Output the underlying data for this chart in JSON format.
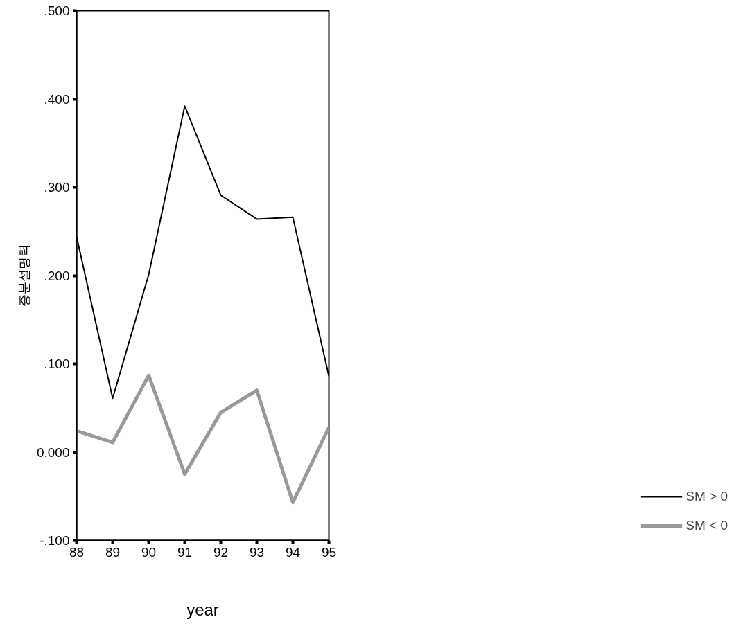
{
  "chart_data": {
    "type": "line",
    "xlabel": "year",
    "ylabel": "증분설명력",
    "x": [
      88,
      89,
      90,
      91,
      92,
      93,
      94,
      95
    ],
    "series": [
      {
        "name": "SM > 0",
        "color": "#000000",
        "values": [
          0.244,
          0.061,
          0.201,
          0.392,
          0.291,
          0.264,
          0.266,
          0.086
        ]
      },
      {
        "name": "SM < 0",
        "color": "#999999",
        "values": [
          0.024,
          0.011,
          0.087,
          -0.025,
          0.045,
          0.07,
          -0.057,
          0.028
        ]
      }
    ],
    "xlim": [
      88,
      95
    ],
    "ylim": [
      -0.1,
      0.5
    ],
    "xticks": [
      88,
      89,
      90,
      91,
      92,
      93,
      94,
      95
    ],
    "yticks": [
      {
        "value": -0.1,
        "label": "-.100"
      },
      {
        "value": 0,
        "label": "0.000"
      },
      {
        "value": 0.1,
        "label": ".100"
      },
      {
        "value": 0.2,
        "label": ".200"
      },
      {
        "value": 0.3,
        "label": ".300"
      },
      {
        "value": 0.4,
        "label": ".400"
      },
      {
        "value": 0.5,
        "label": ".500"
      }
    ],
    "grid": false,
    "legend": "bottom right",
    "line_style": "solid"
  }
}
